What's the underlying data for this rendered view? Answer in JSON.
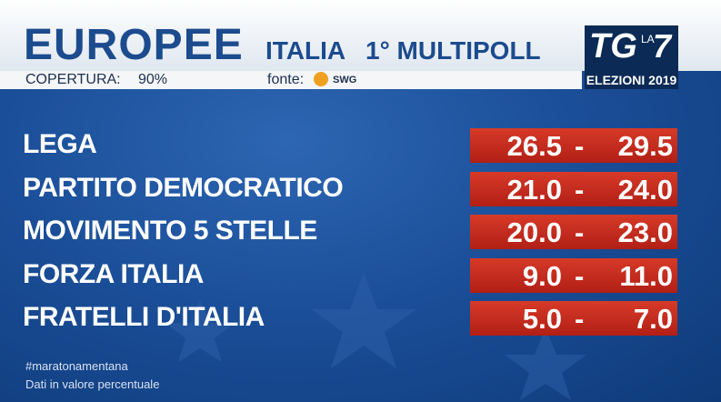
{
  "header": {
    "title": "EUROPEE",
    "country": "ITALIA",
    "poll": "1° MULTIPOLL",
    "coverage_label": "COPERTURA:",
    "coverage_value": "90%",
    "source_label": "fonte:",
    "source": "SWG"
  },
  "logo": {
    "tg": "TG",
    "channel_prefix": "LA",
    "channel_number": "7",
    "event": "ELEZIONI 2019"
  },
  "range_separator": "-",
  "rows": [
    {
      "party": "LEGA",
      "low": "26.5",
      "high": "29.5"
    },
    {
      "party": "PARTITO DEMOCRATICO",
      "low": "21.0",
      "high": "24.0"
    },
    {
      "party": "MOVIMENTO 5 STELLE",
      "low": "20.0",
      "high": "23.0"
    },
    {
      "party": "FORZA ITALIA",
      "low": "9.0",
      "high": "11.0"
    },
    {
      "party": "FRATELLI D'ITALIA",
      "low": "5.0",
      "high": "7.0"
    }
  ],
  "footer": {
    "hashtag": "#maratonamentana",
    "note": "Dati in valore percentuale"
  }
}
